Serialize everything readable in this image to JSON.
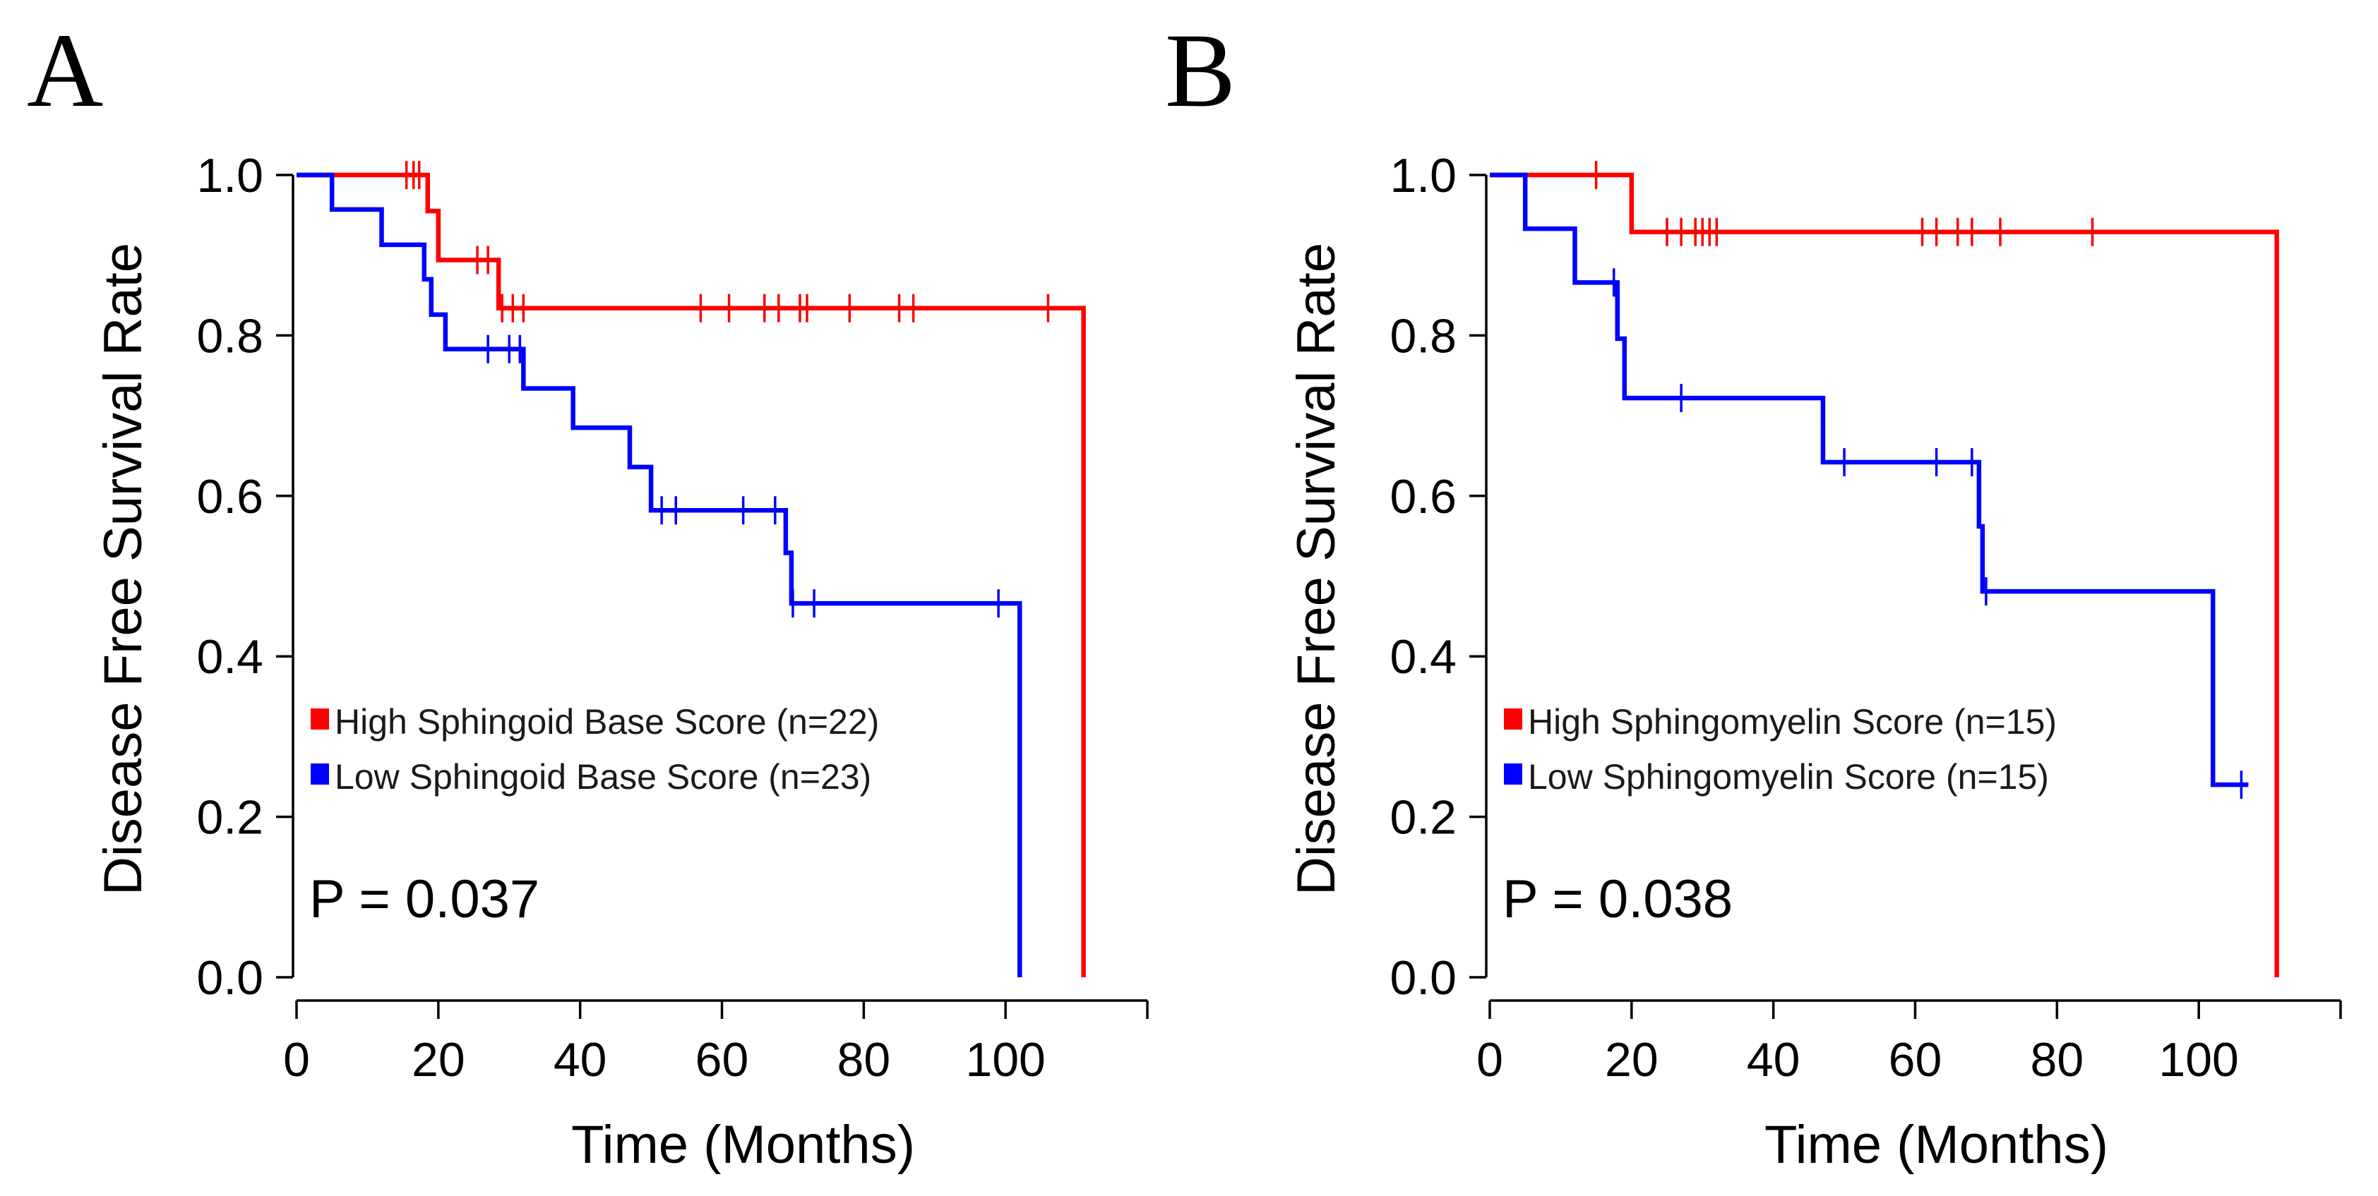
{
  "chart_data": [
    {
      "type": "line",
      "subtype": "kaplan-meier",
      "panel_label": "A",
      "xlabel": "Time (Months)",
      "ylabel": "Disease Free Survival Rate",
      "xlim": [
        0,
        120
      ],
      "ylim": [
        0,
        1
      ],
      "x_ticks": [
        0,
        20,
        40,
        60,
        80,
        100
      ],
      "y_ticks": [
        "0.0",
        "0.2",
        "0.4",
        "0.6",
        "0.8",
        "1.0"
      ],
      "p_value_text": "P = 0.037",
      "series": [
        {
          "name": "High Sphingoid Base Score (n=22)",
          "color": "#ff0000",
          "steps": [
            [
              0,
              1.0
            ],
            [
              18.5,
              0.955
            ],
            [
              20,
              0.894
            ],
            [
              28.5,
              0.834
            ],
            [
              111,
              0.834
            ],
            [
              111,
              0.0
            ]
          ],
          "censored": [
            [
              15.5,
              1.0
            ],
            [
              16.5,
              1.0
            ],
            [
              17.3,
              1.0
            ],
            [
              25.5,
              0.894
            ],
            [
              27,
              0.894
            ],
            [
              29,
              0.834
            ],
            [
              30.5,
              0.834
            ],
            [
              32,
              0.834
            ],
            [
              57,
              0.834
            ],
            [
              61,
              0.834
            ],
            [
              66,
              0.834
            ],
            [
              68,
              0.834
            ],
            [
              71,
              0.834
            ],
            [
              72,
              0.834
            ],
            [
              78,
              0.834
            ],
            [
              85,
              0.834
            ],
            [
              87,
              0.834
            ],
            [
              106,
              0.834
            ]
          ]
        },
        {
          "name": "Low Sphingoid Base Score (n=23)",
          "color": "#0000ff",
          "steps": [
            [
              0,
              1.0
            ],
            [
              5,
              0.957
            ],
            [
              12,
              0.913
            ],
            [
              18,
              0.87
            ],
            [
              19,
              0.826
            ],
            [
              21,
              0.783
            ],
            [
              32,
              0.734
            ],
            [
              39,
              0.685
            ],
            [
              47,
              0.636
            ],
            [
              50,
              0.582
            ],
            [
              69,
              0.529
            ],
            [
              69.8,
              0.466
            ],
            [
              102,
              0.466
            ],
            [
              102,
              0.0
            ]
          ],
          "censored": [
            [
              27,
              0.783
            ],
            [
              30,
              0.783
            ],
            [
              31.5,
              0.783
            ],
            [
              51.5,
              0.582
            ],
            [
              53.5,
              0.582
            ],
            [
              63,
              0.582
            ],
            [
              67.5,
              0.582
            ],
            [
              70,
              0.466
            ],
            [
              73,
              0.466
            ],
            [
              99,
              0.466
            ]
          ]
        }
      ]
    },
    {
      "type": "line",
      "subtype": "kaplan-meier",
      "panel_label": "B",
      "xlabel": "Time (Months)",
      "ylabel": "Disease Free Survival Rate",
      "xlim": [
        0,
        120
      ],
      "ylim": [
        0,
        1
      ],
      "x_ticks": [
        0,
        20,
        40,
        60,
        80,
        100
      ],
      "y_ticks": [
        "0.0",
        "0.2",
        "0.4",
        "0.6",
        "0.8",
        "1.0"
      ],
      "p_value_text": "P = 0.038",
      "series": [
        {
          "name": "High Sphingomyelin Score (n=15)",
          "color": "#ff0000",
          "steps": [
            [
              0,
              1.0
            ],
            [
              20,
              0.929
            ],
            [
              111,
              0.929
            ],
            [
              111,
              0.0
            ]
          ],
          "censored": [
            [
              15,
              1.0
            ],
            [
              25,
              0.929
            ],
            [
              27,
              0.929
            ],
            [
              29,
              0.929
            ],
            [
              30,
              0.929
            ],
            [
              31,
              0.929
            ],
            [
              32,
              0.929
            ],
            [
              61,
              0.929
            ],
            [
              63,
              0.929
            ],
            [
              66,
              0.929
            ],
            [
              68,
              0.929
            ],
            [
              72,
              0.929
            ],
            [
              85,
              0.929
            ]
          ]
        },
        {
          "name": "Low Sphingomyelin Score (n=15)",
          "color": "#0000ff",
          "steps": [
            [
              0,
              1.0
            ],
            [
              5,
              0.933
            ],
            [
              12,
              0.866
            ],
            [
              18,
              0.796
            ],
            [
              19,
              0.722
            ],
            [
              47,
              0.642
            ],
            [
              69,
              0.562
            ],
            [
              69.5,
              0.481
            ],
            [
              102,
              0.481
            ],
            [
              102,
              0.24
            ],
            [
              107,
              0.24
            ]
          ],
          "censored": [
            [
              17.5,
              0.866
            ],
            [
              27,
              0.722
            ],
            [
              50,
              0.642
            ],
            [
              63,
              0.642
            ],
            [
              68,
              0.642
            ],
            [
              70,
              0.481
            ],
            [
              106,
              0.24
            ]
          ]
        }
      ]
    }
  ]
}
